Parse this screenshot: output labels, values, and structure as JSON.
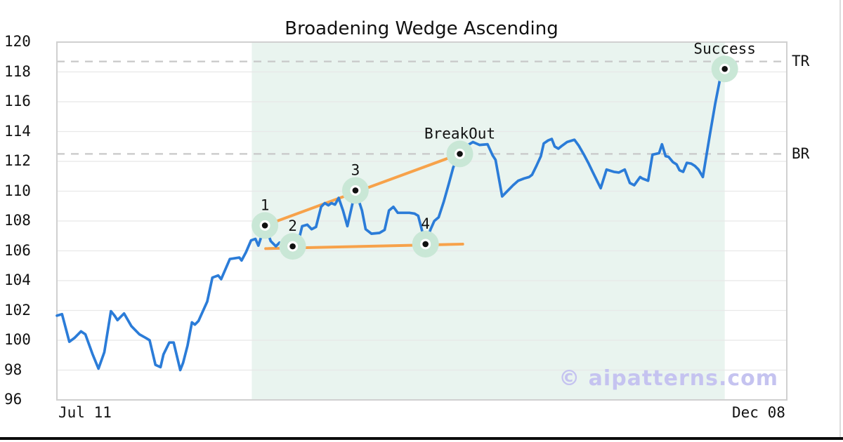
{
  "title": "Broadening Wedge Ascending",
  "watermark": "© aipatterns.com",
  "colors": {
    "line": "#2b7cd8",
    "trendline": "#f7a24a",
    "marker_halo": "#c9e7d6",
    "marker_dot": "#111111",
    "pattern_zone": "#e9f4ef",
    "level_dash": "#c8c8c8",
    "grid": "#e8e8e8",
    "plot_border": "#d0d0d0",
    "watermark_color": "#c5c3f0",
    "text": "#111111"
  },
  "axes": {
    "y_ticks": [
      120,
      118,
      116,
      114,
      112,
      110,
      108,
      106,
      104,
      102,
      100,
      98,
      96
    ],
    "x_ticks": [
      "Jul 11",
      "Dec 08"
    ]
  },
  "chart_data": {
    "type": "line",
    "title": "Broadening Wedge Ascending",
    "ylim": [
      96,
      120
    ],
    "x_range_labels": [
      "Jul 11",
      "Dec 08"
    ],
    "grid": "horizontal-only",
    "legend": "none",
    "levels": [
      {
        "label": "TR",
        "value": 118.7
      },
      {
        "label": "BR",
        "value": 112.5
      }
    ],
    "pattern_zone": {
      "t_start": 0.267,
      "t_end": 0.915
    },
    "trendlines": [
      {
        "name": "upper",
        "from": [
          0.285,
          107.7
        ],
        "to": [
          0.552,
          112.5
        ]
      },
      {
        "name": "lower",
        "from": [
          0.286,
          106.15
        ],
        "to": [
          0.556,
          106.45
        ]
      }
    ],
    "pattern_points": [
      {
        "label": "1",
        "t": 0.285,
        "value": 107.7
      },
      {
        "label": "2",
        "t": 0.323,
        "value": 106.3
      },
      {
        "label": "3",
        "t": 0.409,
        "value": 110.05
      },
      {
        "label": "4",
        "t": 0.505,
        "value": 106.45
      },
      {
        "label": "BreakOut",
        "t": 0.552,
        "value": 112.5
      },
      {
        "label": "Success",
        "t": 0.915,
        "value": 118.2
      }
    ],
    "target_tail": {
      "from": [
        0.918,
        118.3
      ],
      "to": [
        0.931,
        118.62
      ]
    },
    "series": [
      {
        "name": "price",
        "points": [
          [
            0.0,
            101.65
          ],
          [
            0.007,
            101.75
          ],
          [
            0.017,
            99.9
          ],
          [
            0.024,
            100.15
          ],
          [
            0.033,
            100.6
          ],
          [
            0.039,
            100.4
          ],
          [
            0.049,
            99.05
          ],
          [
            0.057,
            98.1
          ],
          [
            0.065,
            99.2
          ],
          [
            0.074,
            101.95
          ],
          [
            0.079,
            101.65
          ],
          [
            0.083,
            101.35
          ],
          [
            0.088,
            101.6
          ],
          [
            0.092,
            101.8
          ],
          [
            0.102,
            100.95
          ],
          [
            0.113,
            100.4
          ],
          [
            0.122,
            100.15
          ],
          [
            0.127,
            100.0
          ],
          [
            0.135,
            98.35
          ],
          [
            0.142,
            98.2
          ],
          [
            0.146,
            99.05
          ],
          [
            0.154,
            99.85
          ],
          [
            0.16,
            99.85
          ],
          [
            0.169,
            98.0
          ],
          [
            0.173,
            98.5
          ],
          [
            0.179,
            99.65
          ],
          [
            0.185,
            101.2
          ],
          [
            0.189,
            101.05
          ],
          [
            0.194,
            101.3
          ],
          [
            0.206,
            102.6
          ],
          [
            0.213,
            104.2
          ],
          [
            0.221,
            104.35
          ],
          [
            0.225,
            104.1
          ],
          [
            0.237,
            105.45
          ],
          [
            0.25,
            105.55
          ],
          [
            0.253,
            105.35
          ],
          [
            0.259,
            105.9
          ],
          [
            0.266,
            106.7
          ],
          [
            0.272,
            106.8
          ],
          [
            0.276,
            106.35
          ],
          [
            0.285,
            107.7
          ],
          [
            0.293,
            106.65
          ],
          [
            0.3,
            106.3
          ],
          [
            0.305,
            106.55
          ],
          [
            0.312,
            106.35
          ],
          [
            0.323,
            106.3
          ],
          [
            0.33,
            106.45
          ],
          [
            0.336,
            107.65
          ],
          [
            0.343,
            107.75
          ],
          [
            0.349,
            107.45
          ],
          [
            0.355,
            107.6
          ],
          [
            0.362,
            108.95
          ],
          [
            0.367,
            109.2
          ],
          [
            0.372,
            109.05
          ],
          [
            0.376,
            109.2
          ],
          [
            0.381,
            109.1
          ],
          [
            0.386,
            109.55
          ],
          [
            0.392,
            108.7
          ],
          [
            0.398,
            107.65
          ],
          [
            0.409,
            110.05
          ],
          [
            0.418,
            108.7
          ],
          [
            0.423,
            107.45
          ],
          [
            0.431,
            107.15
          ],
          [
            0.442,
            107.2
          ],
          [
            0.449,
            107.4
          ],
          [
            0.455,
            108.7
          ],
          [
            0.461,
            108.95
          ],
          [
            0.467,
            108.55
          ],
          [
            0.483,
            108.55
          ],
          [
            0.49,
            108.5
          ],
          [
            0.495,
            108.35
          ],
          [
            0.505,
            106.45
          ],
          [
            0.512,
            107.45
          ],
          [
            0.517,
            108.0
          ],
          [
            0.523,
            108.25
          ],
          [
            0.53,
            109.3
          ],
          [
            0.537,
            110.5
          ],
          [
            0.543,
            111.6
          ],
          [
            0.552,
            112.5
          ],
          [
            0.56,
            113.0
          ],
          [
            0.57,
            113.3
          ],
          [
            0.579,
            113.1
          ],
          [
            0.59,
            113.15
          ],
          [
            0.597,
            112.4
          ],
          [
            0.601,
            112.1
          ],
          [
            0.61,
            109.65
          ],
          [
            0.619,
            110.1
          ],
          [
            0.625,
            110.4
          ],
          [
            0.632,
            110.7
          ],
          [
            0.64,
            110.85
          ],
          [
            0.647,
            110.95
          ],
          [
            0.651,
            111.1
          ],
          [
            0.657,
            111.7
          ],
          [
            0.663,
            112.35
          ],
          [
            0.667,
            113.2
          ],
          [
            0.673,
            113.4
          ],
          [
            0.678,
            113.5
          ],
          [
            0.682,
            113.0
          ],
          [
            0.687,
            112.85
          ],
          [
            0.692,
            113.05
          ],
          [
            0.699,
            113.3
          ],
          [
            0.709,
            113.45
          ],
          [
            0.715,
            113.05
          ],
          [
            0.722,
            112.45
          ],
          [
            0.728,
            111.9
          ],
          [
            0.734,
            111.3
          ],
          [
            0.741,
            110.6
          ],
          [
            0.745,
            110.2
          ],
          [
            0.753,
            111.45
          ],
          [
            0.763,
            111.3
          ],
          [
            0.77,
            111.25
          ],
          [
            0.778,
            111.45
          ],
          [
            0.785,
            110.55
          ],
          [
            0.791,
            110.4
          ],
          [
            0.799,
            110.95
          ],
          [
            0.802,
            110.85
          ],
          [
            0.81,
            110.7
          ],
          [
            0.816,
            112.45
          ],
          [
            0.825,
            112.55
          ],
          [
            0.829,
            113.15
          ],
          [
            0.834,
            112.35
          ],
          [
            0.838,
            112.3
          ],
          [
            0.844,
            111.95
          ],
          [
            0.849,
            111.8
          ],
          [
            0.853,
            111.4
          ],
          [
            0.858,
            111.3
          ],
          [
            0.863,
            111.9
          ],
          [
            0.869,
            111.85
          ],
          [
            0.874,
            111.7
          ],
          [
            0.879,
            111.45
          ],
          [
            0.885,
            110.95
          ],
          [
            0.895,
            113.9
          ],
          [
            0.902,
            115.9
          ],
          [
            0.909,
            117.65
          ],
          [
            0.915,
            118.2
          ]
        ]
      }
    ]
  }
}
